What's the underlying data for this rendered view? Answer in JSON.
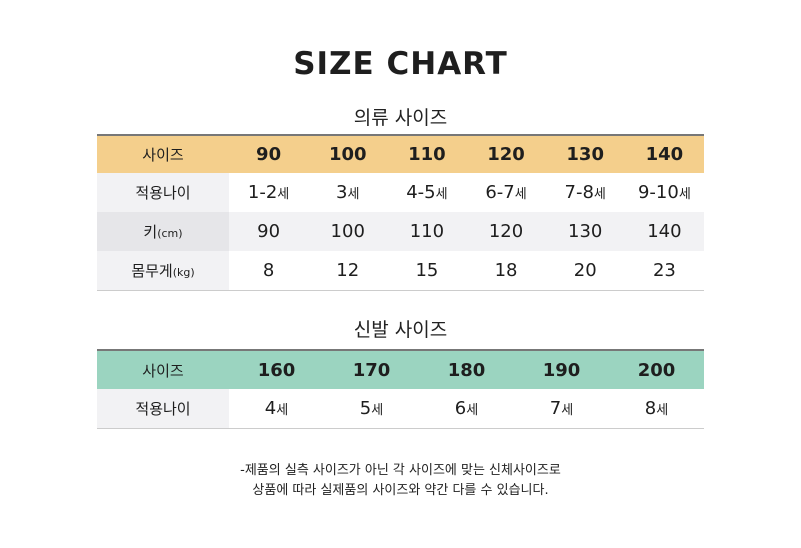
{
  "title": "SIZE CHART",
  "clothing": {
    "heading": "의류 사이즈",
    "header_label": "사이즈",
    "sizes": [
      "90",
      "100",
      "110",
      "120",
      "130",
      "140"
    ],
    "age_label": "적용나이",
    "ages": [
      {
        "num": "1-2",
        "unit": "세"
      },
      {
        "num": "3",
        "unit": "세"
      },
      {
        "num": "4-5",
        "unit": "세"
      },
      {
        "num": "6-7",
        "unit": "세"
      },
      {
        "num": "7-8",
        "unit": "세"
      },
      {
        "num": "9-10",
        "unit": "세"
      }
    ],
    "height_label": "키",
    "height_unit": "(cm)",
    "heights": [
      "90",
      "100",
      "110",
      "120",
      "130",
      "140"
    ],
    "weight_label": "몸무게",
    "weight_unit": "(kg)",
    "weights": [
      "8",
      "12",
      "15",
      "18",
      "20",
      "23"
    ],
    "header_color": "#f4cf8c"
  },
  "shoes": {
    "heading": "신발 사이즈",
    "header_label": "사이즈",
    "sizes": [
      "160",
      "170",
      "180",
      "190",
      "200"
    ],
    "age_label": "적용나이",
    "ages": [
      {
        "num": "4",
        "unit": "세"
      },
      {
        "num": "5",
        "unit": "세"
      },
      {
        "num": "6",
        "unit": "세"
      },
      {
        "num": "7",
        "unit": "세"
      },
      {
        "num": "8",
        "unit": "세"
      }
    ],
    "header_color": "#9bd4c0"
  },
  "notes": [
    "-제품의 실측 사이즈가 아닌 각 사이즈에 맞는 신체사이즈로",
    "상품에 따라 실제품의 사이즈와 약간 다를 수 있습니다."
  ]
}
